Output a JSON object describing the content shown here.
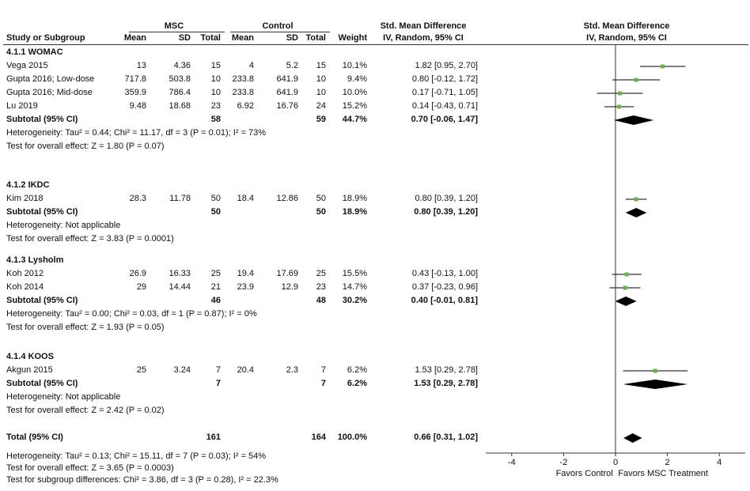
{
  "header": {
    "group1": "MSC",
    "group2": "Control",
    "smd_title": "Std. Mean Difference",
    "smd_sub": "IV, Random, 95% CI",
    "plot_title": "Std. Mean Difference",
    "plot_sub": "IV, Random, 95% CI",
    "col_study": "Study or Subgroup",
    "col_mean": "Mean",
    "col_sd": "SD",
    "col_total": "Total",
    "col_mean2": "Mean",
    "col_sd2": "SD",
    "col_total2": "Total",
    "col_weight": "Weight"
  },
  "colors": {
    "point": "#6ab04c",
    "line": "#333333",
    "diamond": "#000000"
  },
  "groups": [
    {
      "title": "4.1.1 WOMAC",
      "studies": [
        {
          "name": "Vega 2015",
          "m1": "13",
          "sd1": "4.36",
          "n1": "15",
          "m2": "4",
          "sd2": "5.2",
          "n2": "15",
          "w": "10.1%",
          "ci": "1.82 [0.95, 2.70]"
        },
        {
          "name": "Gupta 2016; Low-dose",
          "m1": "717.8",
          "sd1": "503.8",
          "n1": "10",
          "m2": "233.8",
          "sd2": "641.9",
          "n2": "10",
          "w": "9.4%",
          "ci": "0.80 [-0.12, 1.72]"
        },
        {
          "name": "Gupta 2016; Mid-dose",
          "m1": "359.9",
          "sd1": "786.4",
          "n1": "10",
          "m2": "233.8",
          "sd2": "641.9",
          "n2": "10",
          "w": "10.0%",
          "ci": "0.17 [-0.71, 1.05]"
        },
        {
          "name": "Lu 2019",
          "m1": "9.48",
          "sd1": "18.68",
          "n1": "23",
          "m2": "6.92",
          "sd2": "16.76",
          "n2": "24",
          "w": "15.2%",
          "ci": "0.14 [-0.43, 0.71]"
        }
      ],
      "subtotal": {
        "label": "Subtotal (95% CI)",
        "n1": "58",
        "n2": "59",
        "w": "44.7%",
        "ci": "0.70 [-0.06, 1.47]"
      },
      "het": "Heterogeneity: Tau² = 0.44; Chi² = 11.17, df = 3 (P = 0.01); I² = 73%",
      "test": "Test for overall effect: Z = 1.80 (P = 0.07)"
    },
    {
      "title": "4.1.2 IKDC",
      "studies": [
        {
          "name": "Kim 2018",
          "m1": "28.3",
          "sd1": "11.78",
          "n1": "50",
          "m2": "18.4",
          "sd2": "12.86",
          "n2": "50",
          "w": "18.9%",
          "ci": "0.80 [0.39, 1.20]"
        }
      ],
      "subtotal": {
        "label": "Subtotal (95% CI)",
        "n1": "50",
        "n2": "50",
        "w": "18.9%",
        "ci": "0.80 [0.39, 1.20]"
      },
      "het": "Heterogeneity: Not applicable",
      "test": "Test for overall effect: Z = 3.83 (P = 0.0001)"
    },
    {
      "title": "4.1.3 Lysholm",
      "studies": [
        {
          "name": "Koh 2012",
          "m1": "26.9",
          "sd1": "16.33",
          "n1": "25",
          "m2": "19.4",
          "sd2": "17.69",
          "n2": "25",
          "w": "15.5%",
          "ci": "0.43 [-0.13, 1.00]"
        },
        {
          "name": "Koh 2014",
          "m1": "29",
          "sd1": "14.44",
          "n1": "21",
          "m2": "23.9",
          "sd2": "12.9",
          "n2": "23",
          "w": "14.7%",
          "ci": "0.37 [-0.23, 0.96]"
        }
      ],
      "subtotal": {
        "label": "Subtotal (95% CI)",
        "n1": "46",
        "n2": "48",
        "w": "30.2%",
        "ci": "0.40 [-0.01, 0.81]"
      },
      "het": "Heterogeneity: Tau² = 0.00; Chi² = 0.03, df = 1 (P = 0.87); I² = 0%",
      "test": "Test for overall effect: Z = 1.93 (P = 0.05)"
    },
    {
      "title": "4.1.4 KOOS",
      "studies": [
        {
          "name": "Akgun 2015",
          "m1": "25",
          "sd1": "3.24",
          "n1": "7",
          "m2": "20.4",
          "sd2": "2.3",
          "n2": "7",
          "w": "6.2%",
          "ci": "1.53 [0.29, 2.78]"
        }
      ],
      "subtotal": {
        "label": "Subtotal (95% CI)",
        "n1": "7",
        "n2": "7",
        "w": "6.2%",
        "ci": "1.53 [0.29, 2.78]"
      },
      "het": "Heterogeneity: Not applicable",
      "test": "Test for overall effect: Z = 2.42 (P = 0.02)"
    }
  ],
  "total": {
    "label": "Total (95% CI)",
    "n1": "161",
    "n2": "164",
    "w": "100.0%",
    "ci": "0.66 [0.31, 1.02]",
    "het": "Heterogeneity: Tau² = 0.13; Chi² = 15.11, df = 7 (P = 0.03); I² = 54%",
    "test": "Test for overall effect: Z = 3.65 (P = 0.0003)",
    "subgroup": "Test for subgroup differences: Chi² = 3.86, df = 3 (P = 0.28), I² = 22.3%"
  },
  "axis": {
    "ticks": [
      "-4",
      "-2",
      "0",
      "2",
      "4"
    ],
    "left_label": "Favors Control",
    "right_label": "Favors MSC Treatment"
  },
  "chart_data": {
    "type": "scatter",
    "xlim": [
      -4,
      4
    ],
    "x_ticks": [
      -4,
      -2,
      0,
      2,
      4
    ],
    "studies": [
      {
        "name": "Vega 2015",
        "est": 1.82,
        "lo": 0.95,
        "hi": 2.7
      },
      {
        "name": "Gupta 2016; Low-dose",
        "est": 0.8,
        "lo": -0.12,
        "hi": 1.72
      },
      {
        "name": "Gupta 2016; Mid-dose",
        "est": 0.17,
        "lo": -0.71,
        "hi": 1.05
      },
      {
        "name": "Lu 2019",
        "est": 0.14,
        "lo": -0.43,
        "hi": 0.71
      },
      {
        "name": "Kim 2018",
        "est": 0.8,
        "lo": 0.39,
        "hi": 1.2
      },
      {
        "name": "Koh 2012",
        "est": 0.43,
        "lo": -0.13,
        "hi": 1.0
      },
      {
        "name": "Koh 2014",
        "est": 0.37,
        "lo": -0.23,
        "hi": 0.96
      },
      {
        "name": "Akgun 2015",
        "est": 1.53,
        "lo": 0.29,
        "hi": 2.78
      }
    ],
    "subtotals": [
      {
        "group": "4.1.1 WOMAC",
        "est": 0.7,
        "lo": -0.06,
        "hi": 1.47
      },
      {
        "group": "4.1.2 IKDC",
        "est": 0.8,
        "lo": 0.39,
        "hi": 1.2
      },
      {
        "group": "4.1.3 Lysholm",
        "est": 0.4,
        "lo": -0.01,
        "hi": 0.81
      },
      {
        "group": "4.1.4 KOOS",
        "est": 1.53,
        "lo": 0.29,
        "hi": 2.78
      }
    ],
    "overall": {
      "est": 0.66,
      "lo": 0.31,
      "hi": 1.02
    }
  }
}
